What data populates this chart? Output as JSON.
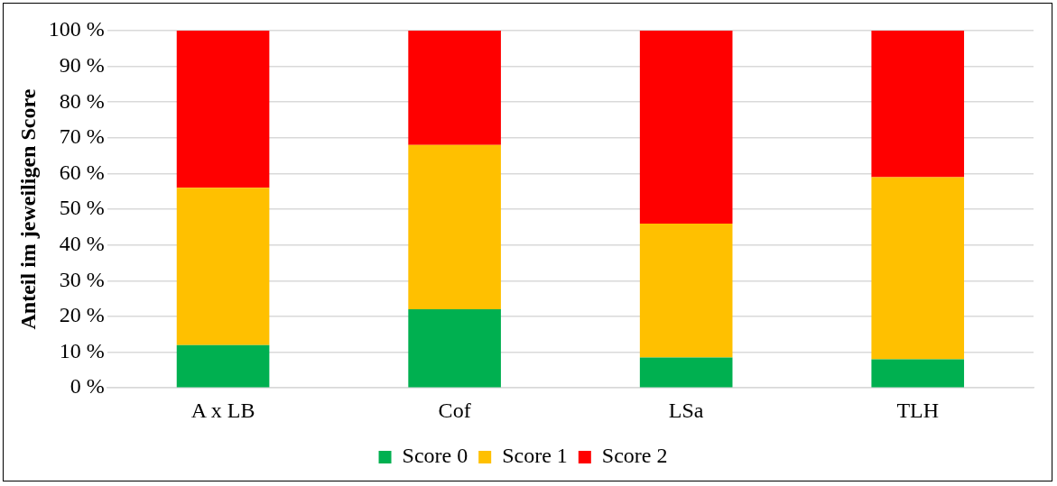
{
  "chart_data": {
    "type": "bar",
    "stacked": true,
    "ylabel": "Anteil im jeweiligen Score",
    "categories": [
      "A x LB",
      "Cof",
      "LSa",
      "TLH"
    ],
    "series": [
      {
        "name": "Score 0",
        "color": "#00b050",
        "values": [
          12,
          22,
          8.5,
          8
        ]
      },
      {
        "name": "Score 1",
        "color": "#ffc000",
        "values": [
          44,
          46,
          37.5,
          51
        ]
      },
      {
        "name": "Score 2",
        "color": "#ff0000",
        "values": [
          44,
          32,
          54,
          41
        ]
      }
    ],
    "ylim": [
      0,
      100
    ],
    "yticks": [
      {
        "value": 0,
        "label": "0 %"
      },
      {
        "value": 10,
        "label": "10 %"
      },
      {
        "value": 20,
        "label": "20 %"
      },
      {
        "value": 30,
        "label": "30 %"
      },
      {
        "value": 40,
        "label": "40 %"
      },
      {
        "value": 50,
        "label": "50 %"
      },
      {
        "value": 60,
        "label": "60 %"
      },
      {
        "value": 70,
        "label": "70 %"
      },
      {
        "value": 80,
        "label": "80 %"
      },
      {
        "value": 90,
        "label": "90 %"
      },
      {
        "value": 100,
        "label": "100 %"
      }
    ],
    "grid": "y",
    "legend": "bottom"
  }
}
